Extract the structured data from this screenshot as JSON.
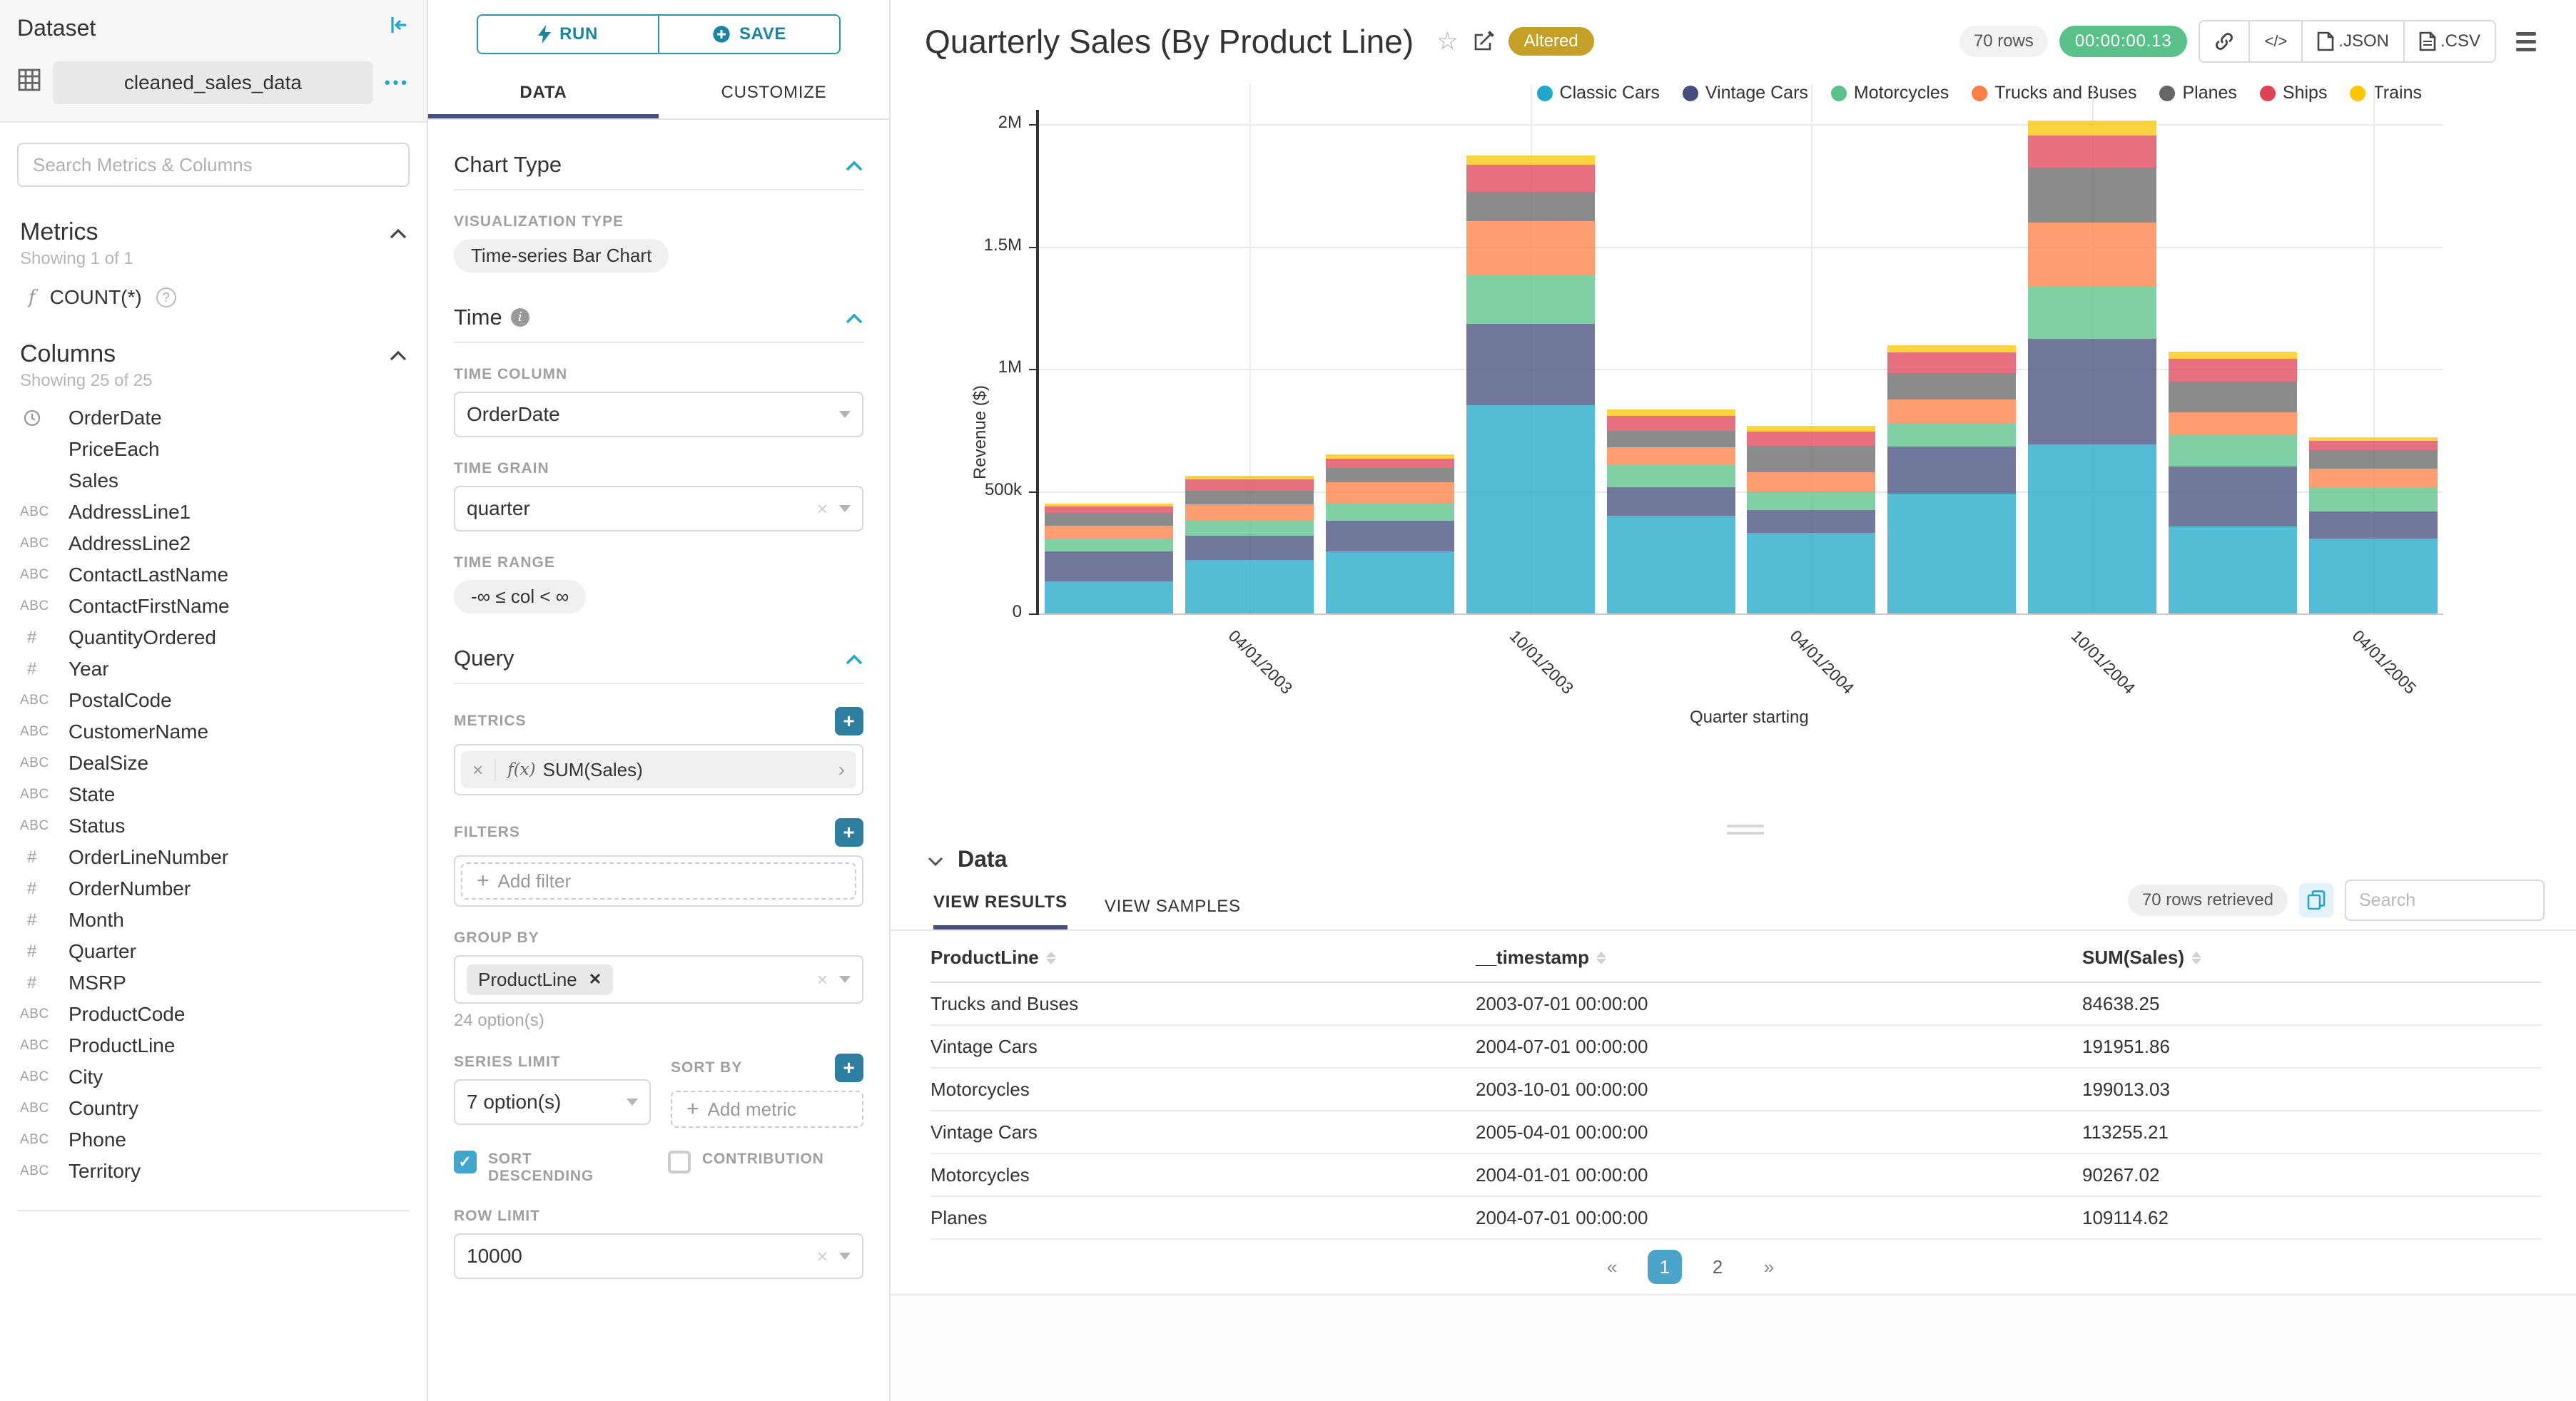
{
  "colors": {
    "accent": "#20A7C9",
    "tab_underline": "#474F7C",
    "altered_bg": "#C5A026",
    "timer_bg": "#5AC189",
    "add_button_bg": "#2E7EA0",
    "checkbox_bg": "#41A6C9",
    "pagination_active_bg": "#4AA3C9"
  },
  "sidebar": {
    "title": "Dataset",
    "dataset_name": "cleaned_sales_data",
    "more_ellipsis": "•••",
    "search_placeholder": "Search Metrics & Columns",
    "metrics": {
      "title": "Metrics",
      "showing": "Showing 1 of 1",
      "items": [
        {
          "icon": "function-icon",
          "label": "COUNT(*)"
        }
      ]
    },
    "columns": {
      "title": "Columns",
      "showing": "Showing 25 of 25",
      "items": [
        {
          "type": "time",
          "label": "OrderDate"
        },
        {
          "type": "none",
          "label": "PriceEach"
        },
        {
          "type": "none",
          "label": "Sales"
        },
        {
          "type": "text",
          "label": "AddressLine1"
        },
        {
          "type": "text",
          "label": "AddressLine2"
        },
        {
          "type": "text",
          "label": "ContactLastName"
        },
        {
          "type": "text",
          "label": "ContactFirstName"
        },
        {
          "type": "num",
          "label": "QuantityOrdered"
        },
        {
          "type": "num",
          "label": "Year"
        },
        {
          "type": "text",
          "label": "PostalCode"
        },
        {
          "type": "text",
          "label": "CustomerName"
        },
        {
          "type": "text",
          "label": "DealSize"
        },
        {
          "type": "text",
          "label": "State"
        },
        {
          "type": "text",
          "label": "Status"
        },
        {
          "type": "num",
          "label": "OrderLineNumber"
        },
        {
          "type": "num",
          "label": "OrderNumber"
        },
        {
          "type": "num",
          "label": "Month"
        },
        {
          "type": "num",
          "label": "Quarter"
        },
        {
          "type": "num",
          "label": "MSRP"
        },
        {
          "type": "text",
          "label": "ProductCode"
        },
        {
          "type": "text",
          "label": "ProductLine"
        },
        {
          "type": "text",
          "label": "City"
        },
        {
          "type": "text",
          "label": "Country"
        },
        {
          "type": "text",
          "label": "Phone"
        },
        {
          "type": "text",
          "label": "Territory"
        }
      ]
    }
  },
  "controls": {
    "run_label": "RUN",
    "save_label": "SAVE",
    "tabs": [
      "DATA",
      "CUSTOMIZE"
    ],
    "active_tab": "DATA",
    "chart_type": {
      "section": "Chart Type",
      "viz_label": "VISUALIZATION TYPE",
      "viz_value": "Time-series Bar Chart"
    },
    "time": {
      "section": "Time",
      "column_label": "TIME COLUMN",
      "column_value": "OrderDate",
      "grain_label": "TIME GRAIN",
      "grain_value": "quarter",
      "range_label": "TIME RANGE",
      "range_value": "-∞ ≤ col < ∞"
    },
    "query": {
      "section": "Query",
      "metrics_label": "METRICS",
      "metric_prefix": "f(x)",
      "metric_chip": "SUM(Sales)",
      "filters_label": "FILTERS",
      "add_filter": "Add filter",
      "group_by_label": "GROUP BY",
      "group_by_chip": "ProductLine",
      "group_by_options": "24 option(s)",
      "series_limit_label": "SERIES LIMIT",
      "series_limit_value": "7 option(s)",
      "sort_by_label": "SORT BY",
      "add_metric": "Add metric",
      "sort_descending_label": "SORT DESCENDING",
      "sort_descending_checked": true,
      "contribution_label": "CONTRIBUTION",
      "contribution_checked": false,
      "row_limit_label": "ROW LIMIT",
      "row_limit_value": "10000"
    }
  },
  "header": {
    "title": "Quarterly Sales (By Product Line)",
    "altered_badge": "Altered",
    "rows_badge": "70 rows",
    "timer": "00:00:00.13",
    "code_button": "</>",
    "export_json": ".JSON",
    "export_csv": ".CSV"
  },
  "chart_data": {
    "type": "bar",
    "stacked": true,
    "title": "Quarterly Sales (By Product Line)",
    "xlabel": "Quarter starting",
    "ylabel": "Revenue ($)",
    "ylim": [
      0,
      2000000
    ],
    "y_ticks": [
      "0",
      "500k",
      "1M",
      "1.5M",
      "2M"
    ],
    "grid": true,
    "legend_position": "top-right",
    "x": [
      "2003-01-01",
      "2003-04-01",
      "2003-07-01",
      "2003-10-01",
      "2004-01-01",
      "2004-04-01",
      "2004-07-01",
      "2004-10-01",
      "2005-01-01",
      "2005-04-01"
    ],
    "x_tick_labels": [
      "04/01/2003",
      "10/01/2003",
      "04/01/2004",
      "10/01/2004",
      "04/01/2005"
    ],
    "x_tick_indices": [
      1,
      3,
      5,
      7,
      9
    ],
    "series": [
      {
        "name": "Classic Cars",
        "color": "#20A7C9",
        "values": [
          130000,
          220000,
          254000,
          850000,
          400000,
          330000,
          490000,
          691000,
          357000,
          305000
        ]
      },
      {
        "name": "Vintage Cars",
        "color": "#454E7C",
        "values": [
          125000,
          98000,
          124000,
          333000,
          117000,
          93000,
          191951.86,
          431000,
          245000,
          113255.21
        ]
      },
      {
        "name": "Motorcycles",
        "color": "#5AC189",
        "values": [
          50000,
          65000,
          75000,
          199013.03,
          90267.02,
          75000,
          97000,
          212000,
          129000,
          95000
        ]
      },
      {
        "name": "Trucks and Buses",
        "color": "#FF7F44",
        "values": [
          54000,
          63000,
          84638.25,
          221000,
          73000,
          78000,
          95000,
          263000,
          91000,
          80000
        ]
      },
      {
        "name": "Planes",
        "color": "#666666",
        "values": [
          52000,
          55000,
          56000,
          120000,
          67000,
          110000,
          109114.62,
          226000,
          126000,
          75000
        ]
      },
      {
        "name": "Ships",
        "color": "#E04355",
        "values": [
          27000,
          46000,
          40000,
          112000,
          60000,
          58000,
          85000,
          131000,
          94000,
          36000
        ]
      },
      {
        "name": "Trains",
        "color": "#FCC700",
        "values": [
          10000,
          15000,
          16000,
          37000,
          27000,
          22000,
          27000,
          61000,
          29000,
          15000
        ]
      }
    ]
  },
  "data_panel": {
    "title": "Data",
    "tabs": [
      "VIEW RESULTS",
      "VIEW SAMPLES"
    ],
    "active_tab": "VIEW RESULTS",
    "rows_retrieved": "70 rows retrieved",
    "search_placeholder": "Search",
    "table": {
      "columns": [
        "ProductLine",
        "__timestamp",
        "SUM(Sales)"
      ],
      "rows": [
        [
          "Trucks and Buses",
          "2003-07-01 00:00:00",
          "84638.25"
        ],
        [
          "Vintage Cars",
          "2004-07-01 00:00:00",
          "191951.86"
        ],
        [
          "Motorcycles",
          "2003-10-01 00:00:00",
          "199013.03"
        ],
        [
          "Vintage Cars",
          "2005-04-01 00:00:00",
          "113255.21"
        ],
        [
          "Motorcycles",
          "2004-01-01 00:00:00",
          "90267.02"
        ],
        [
          "Planes",
          "2004-07-01 00:00:00",
          "109114.62"
        ]
      ]
    },
    "pagination": {
      "prev": "«",
      "pages": [
        "1",
        "2"
      ],
      "active": "1",
      "next": "»"
    }
  }
}
